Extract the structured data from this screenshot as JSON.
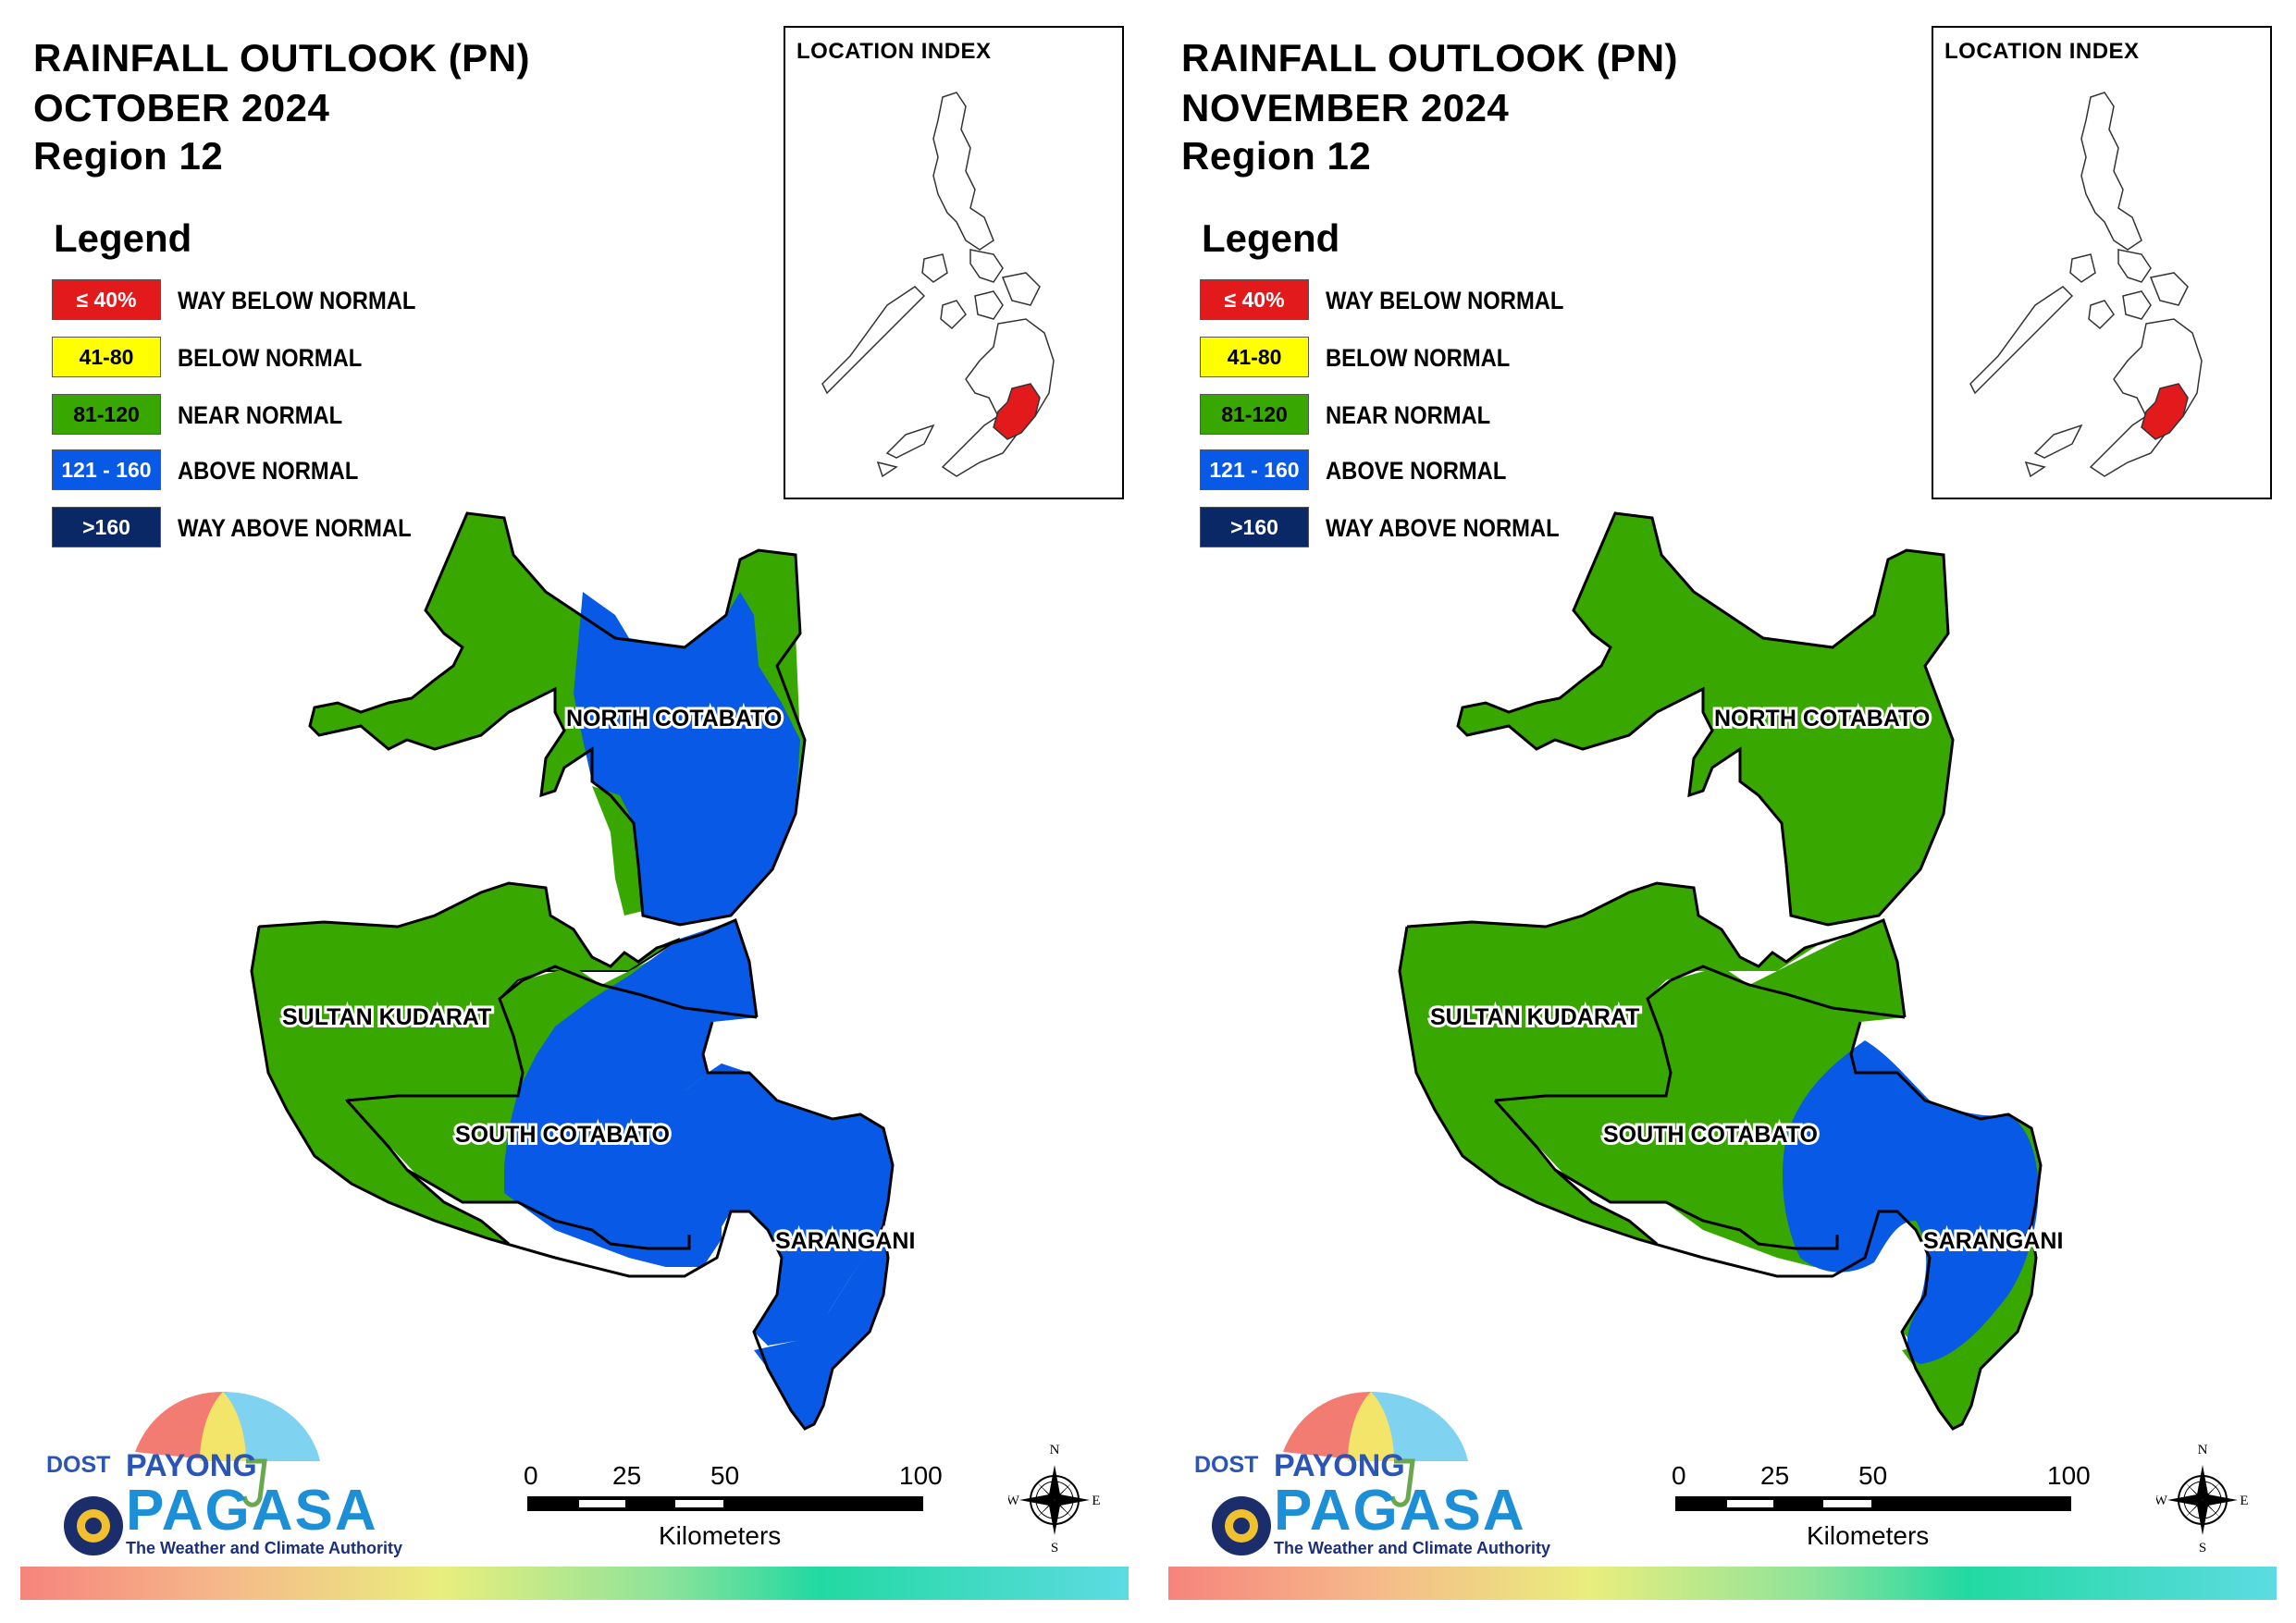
{
  "legend": {
    "title": "Legend",
    "items": [
      {
        "range": "≤ 40%",
        "label": "WAY BELOW NORMAL",
        "color": "#e31a1c",
        "text_color": "#ffffff"
      },
      {
        "range": "41-80",
        "label": "BELOW NORMAL",
        "color": "#ffff00",
        "text_color": "#000000"
      },
      {
        "range": "81-120",
        "label": "NEAR NORMAL",
        "color": "#38a800",
        "text_color": "#000000"
      },
      {
        "range": "121 - 160",
        "label": "ABOVE NORMAL",
        "color": "#0859e6",
        "text_color": "#ffffff"
      },
      {
        "range": ">160",
        "label": "WAY ABOVE NORMAL",
        "color": "#0a2866",
        "text_color": "#ffffff"
      }
    ]
  },
  "inset": {
    "title": "LOCATION INDEX",
    "highlight_color": "#e31a1c"
  },
  "provinces": [
    "NORTH COTABATO",
    "SULTAN KUDARAT",
    "SOUTH COTABATO",
    "SARANGANI"
  ],
  "scale_bar": {
    "ticks": [
      "0",
      "25",
      "50",
      "100"
    ],
    "unit": "Kilometers"
  },
  "compass": {
    "n": "N",
    "e": "E",
    "s": "S",
    "w": "W"
  },
  "logo": {
    "dost": "DOST",
    "payong": "PAYONG",
    "pagasa": "PAGASA",
    "tagline": "The Weather and Climate Authority"
  },
  "panels": [
    {
      "title_1": "RAINFALL OUTLOOK (PN)",
      "title_2": "OCTOBER 2024",
      "title_3": "Region 12",
      "province_outlook": {
        "NORTH COTABATO": "NEAR NORMAL / ABOVE NORMAL",
        "SULTAN KUDARAT": "NEAR NORMAL",
        "SOUTH COTABATO": "ABOVE NORMAL",
        "SARANGANI": "ABOVE NORMAL"
      }
    },
    {
      "title_1": "RAINFALL OUTLOOK (PN)",
      "title_2": "NOVEMBER 2024",
      "title_3": "Region 12",
      "province_outlook": {
        "NORTH COTABATO": "NEAR NORMAL",
        "SULTAN KUDARAT": "NEAR NORMAL",
        "SOUTH COTABATO": "NEAR NORMAL / ABOVE NORMAL",
        "SARANGANI": "ABOVE NORMAL / NEAR NORMAL"
      }
    }
  ]
}
